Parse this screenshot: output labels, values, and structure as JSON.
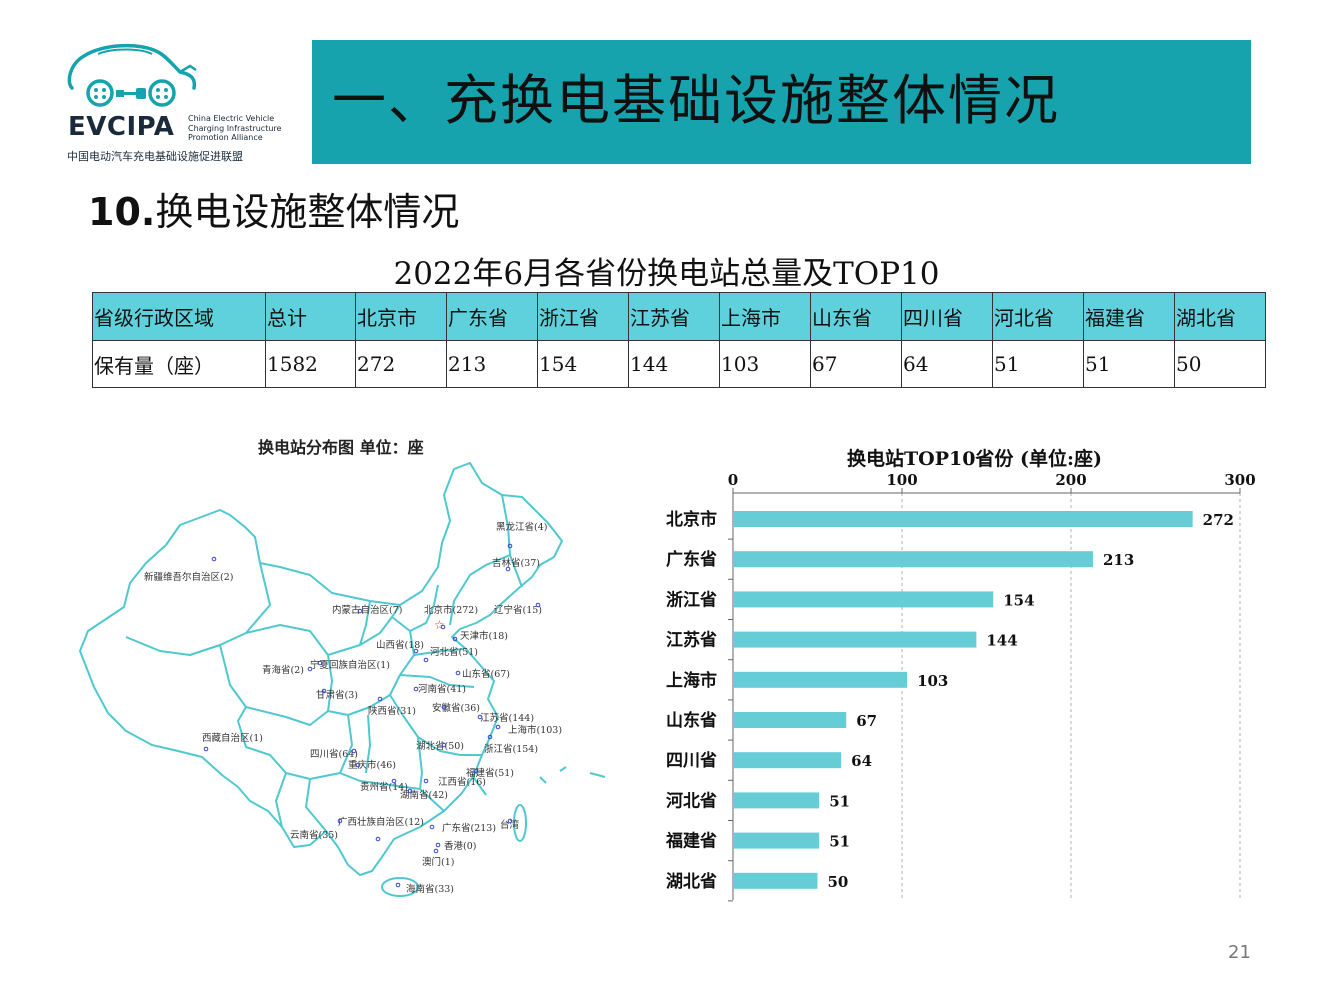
{
  "logo": {
    "name": "EVCIPA",
    "english": "China Electric Vehicle\nCharging Infrastructure\nPromotion Alliance",
    "chinese": "中国电动汽车充电基础设施促进联盟",
    "icon": "ev-car-plug-icon",
    "color": "#16a3ad"
  },
  "header": {
    "title": "一、充换电基础设施整体情况",
    "band_color": "#16a3ad"
  },
  "section": {
    "number": "10.",
    "title": "换电设施整体情况"
  },
  "table": {
    "caption": "2022年6月各省份换电站总量及TOP10",
    "header_color": "#5fd1dc",
    "headers": [
      "省级行政区域",
      "总计",
      "北京市",
      "广东省",
      "浙江省",
      "江苏省",
      "上海市",
      "山东省",
      "四川省",
      "河北省",
      "福建省",
      "湖北省"
    ],
    "rows": [
      [
        "保有量（座）",
        "1582",
        "272",
        "213",
        "154",
        "144",
        "103",
        "67",
        "64",
        "51",
        "51",
        "50"
      ]
    ]
  },
  "map": {
    "title": "换电站分布图   单位：座",
    "outline_color": "#4fc8cf",
    "labels": [
      "黑龙江省(4)",
      "吉林省(37)",
      "辽宁省(15)",
      "北京市(272)",
      "天津市(18)",
      "内蒙古自治区(7)",
      "新疆维吾尔自治区(2)",
      "山西省(18)",
      "河北省(51)",
      "山东省(67)",
      "青海省(2)",
      "宁夏回族自治区(1)",
      "甘肃省(3)",
      "河南省(41)",
      "陕西省(31)",
      "安徽省(36)",
      "江苏省(144)",
      "上海市(103)",
      "西藏自治区(1)",
      "湖北省(50)",
      "浙江省(154)",
      "四川省(64)",
      "重庆市(46)",
      "福建省(51)",
      "江西省(16)",
      "贵州省(14)",
      "湖南省(42)",
      "广西壮族自治区(12)",
      "广东省(213)",
      "台湾",
      "云南省(35)",
      "香港(0)",
      "澳门(1)",
      "海南省(33)"
    ]
  },
  "chart_data": {
    "type": "bar",
    "orientation": "horizontal",
    "title": "换电站TOP10省份 (单位:座)",
    "categories": [
      "北京市",
      "广东省",
      "浙江省",
      "江苏省",
      "上海市",
      "山东省",
      "四川省",
      "河北省",
      "福建省",
      "湖北省"
    ],
    "values": [
      272,
      213,
      154,
      144,
      103,
      67,
      64,
      51,
      51,
      50
    ],
    "xlim": [
      0,
      300
    ],
    "xticks": [
      0,
      100,
      200,
      300
    ],
    "x_axis_position": "top",
    "grid": "vertical dashed",
    "data_labels": true,
    "bar_color": "#66cdd6"
  },
  "page_number": "21"
}
